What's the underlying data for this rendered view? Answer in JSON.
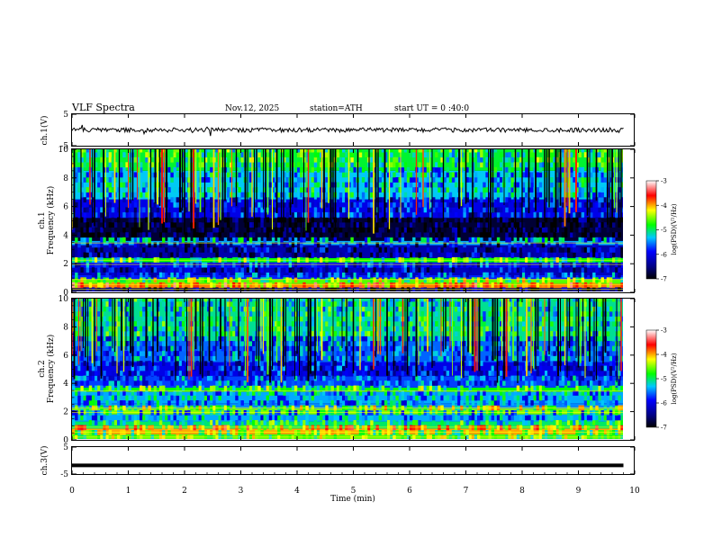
{
  "header": {
    "title": "VLF  Spectra",
    "date": "Nov.12, 2025",
    "station": "station=ATH",
    "start_time": "start  UT  =   0 :40:0"
  },
  "chart_data": {
    "type": "heatmap",
    "title": "VLF  Spectra",
    "xlabel": "Time  (min)",
    "xlim": [
      0,
      10
    ],
    "x_ticks": [
      "0",
      "1",
      "2",
      "3",
      "4",
      "5",
      "6",
      "7",
      "8",
      "9",
      "10"
    ],
    "panels": [
      {
        "name": "ch.1 waveform",
        "kind": "line",
        "ylabel": "ch.1(V)",
        "ylim": [
          -5,
          5
        ],
        "y_ticks": [
          "5",
          "-5"
        ],
        "series_level_v": 0,
        "series_amplitude_v": 1
      },
      {
        "name": "ch.1 spectrogram",
        "kind": "heatmap",
        "ylabel": "Frequency  (kHz)",
        "channel_label": "ch.1",
        "ylim": [
          0,
          10
        ],
        "y_ticks": [
          "0",
          "2",
          "4",
          "6",
          "8",
          "10"
        ],
        "colorbar": {
          "label": "log(PSD)(V²/Hz)",
          "ticks": [
            "-3",
            "-4",
            "-5",
            "-6",
            "-7"
          ],
          "range": [
            -7,
            -3
          ]
        },
        "bands": [
          {
            "f0": 0.0,
            "f1": 0.3,
            "level": -6.6
          },
          {
            "f0": 0.3,
            "f1": 0.6,
            "level": -3.9
          },
          {
            "f0": 0.6,
            "f1": 0.9,
            "level": -4.6
          },
          {
            "f0": 0.9,
            "f1": 1.2,
            "level": -5.8
          },
          {
            "f0": 1.2,
            "f1": 1.7,
            "level": -6.2
          },
          {
            "f0": 1.7,
            "f1": 2.1,
            "level": -5.9
          },
          {
            "f0": 2.1,
            "f1": 2.4,
            "level": -4.8
          },
          {
            "f0": 2.4,
            "f1": 3.3,
            "level": -6.3
          },
          {
            "f0": 3.3,
            "f1": 3.6,
            "level": -5.4
          },
          {
            "f0": 3.6,
            "f1": 5.2,
            "level": -6.8
          },
          {
            "f0": 5.2,
            "f1": 6.5,
            "level": -6.0
          },
          {
            "f0": 6.5,
            "f1": 8.5,
            "level": -5.3
          },
          {
            "f0": 8.5,
            "f1": 10.0,
            "level": -4.9
          }
        ]
      },
      {
        "name": "ch.2 spectrogram",
        "kind": "heatmap",
        "ylabel": "Frequency  (kHz)",
        "channel_label": "ch.2",
        "ylim": [
          0,
          10
        ],
        "y_ticks": [
          "0",
          "2",
          "4",
          "6",
          "8",
          "10"
        ],
        "colorbar": {
          "label": "log(PSD)(V²/Hz)",
          "ticks": [
            "-3",
            "-4",
            "-5",
            "-6",
            "-7"
          ],
          "range": [
            -7,
            -3
          ]
        },
        "bands": [
          {
            "f0": 0.0,
            "f1": 0.4,
            "level": -4.6
          },
          {
            "f0": 0.4,
            "f1": 0.8,
            "level": -4.0
          },
          {
            "f0": 0.8,
            "f1": 1.3,
            "level": -5.0
          },
          {
            "f0": 1.3,
            "f1": 1.8,
            "level": -5.4
          },
          {
            "f0": 1.8,
            "f1": 2.2,
            "level": -4.5
          },
          {
            "f0": 2.2,
            "f1": 2.6,
            "level": -5.5
          },
          {
            "f0": 2.6,
            "f1": 3.4,
            "level": -5.4
          },
          {
            "f0": 3.4,
            "f1": 3.7,
            "level": -4.8
          },
          {
            "f0": 3.7,
            "f1": 4.5,
            "level": -5.7
          },
          {
            "f0": 4.5,
            "f1": 5.5,
            "level": -6.0
          },
          {
            "f0": 5.5,
            "f1": 7.0,
            "level": -5.6
          },
          {
            "f0": 7.0,
            "f1": 10.0,
            "level": -5.1
          }
        ]
      },
      {
        "name": "ch.3 waveform",
        "kind": "line",
        "ylabel": "ch.3(V)",
        "ylim": [
          -5,
          5
        ],
        "y_ticks": [
          "5",
          "-5"
        ],
        "series_level_v": -1.8,
        "series_amplitude_v": 0
      }
    ]
  }
}
